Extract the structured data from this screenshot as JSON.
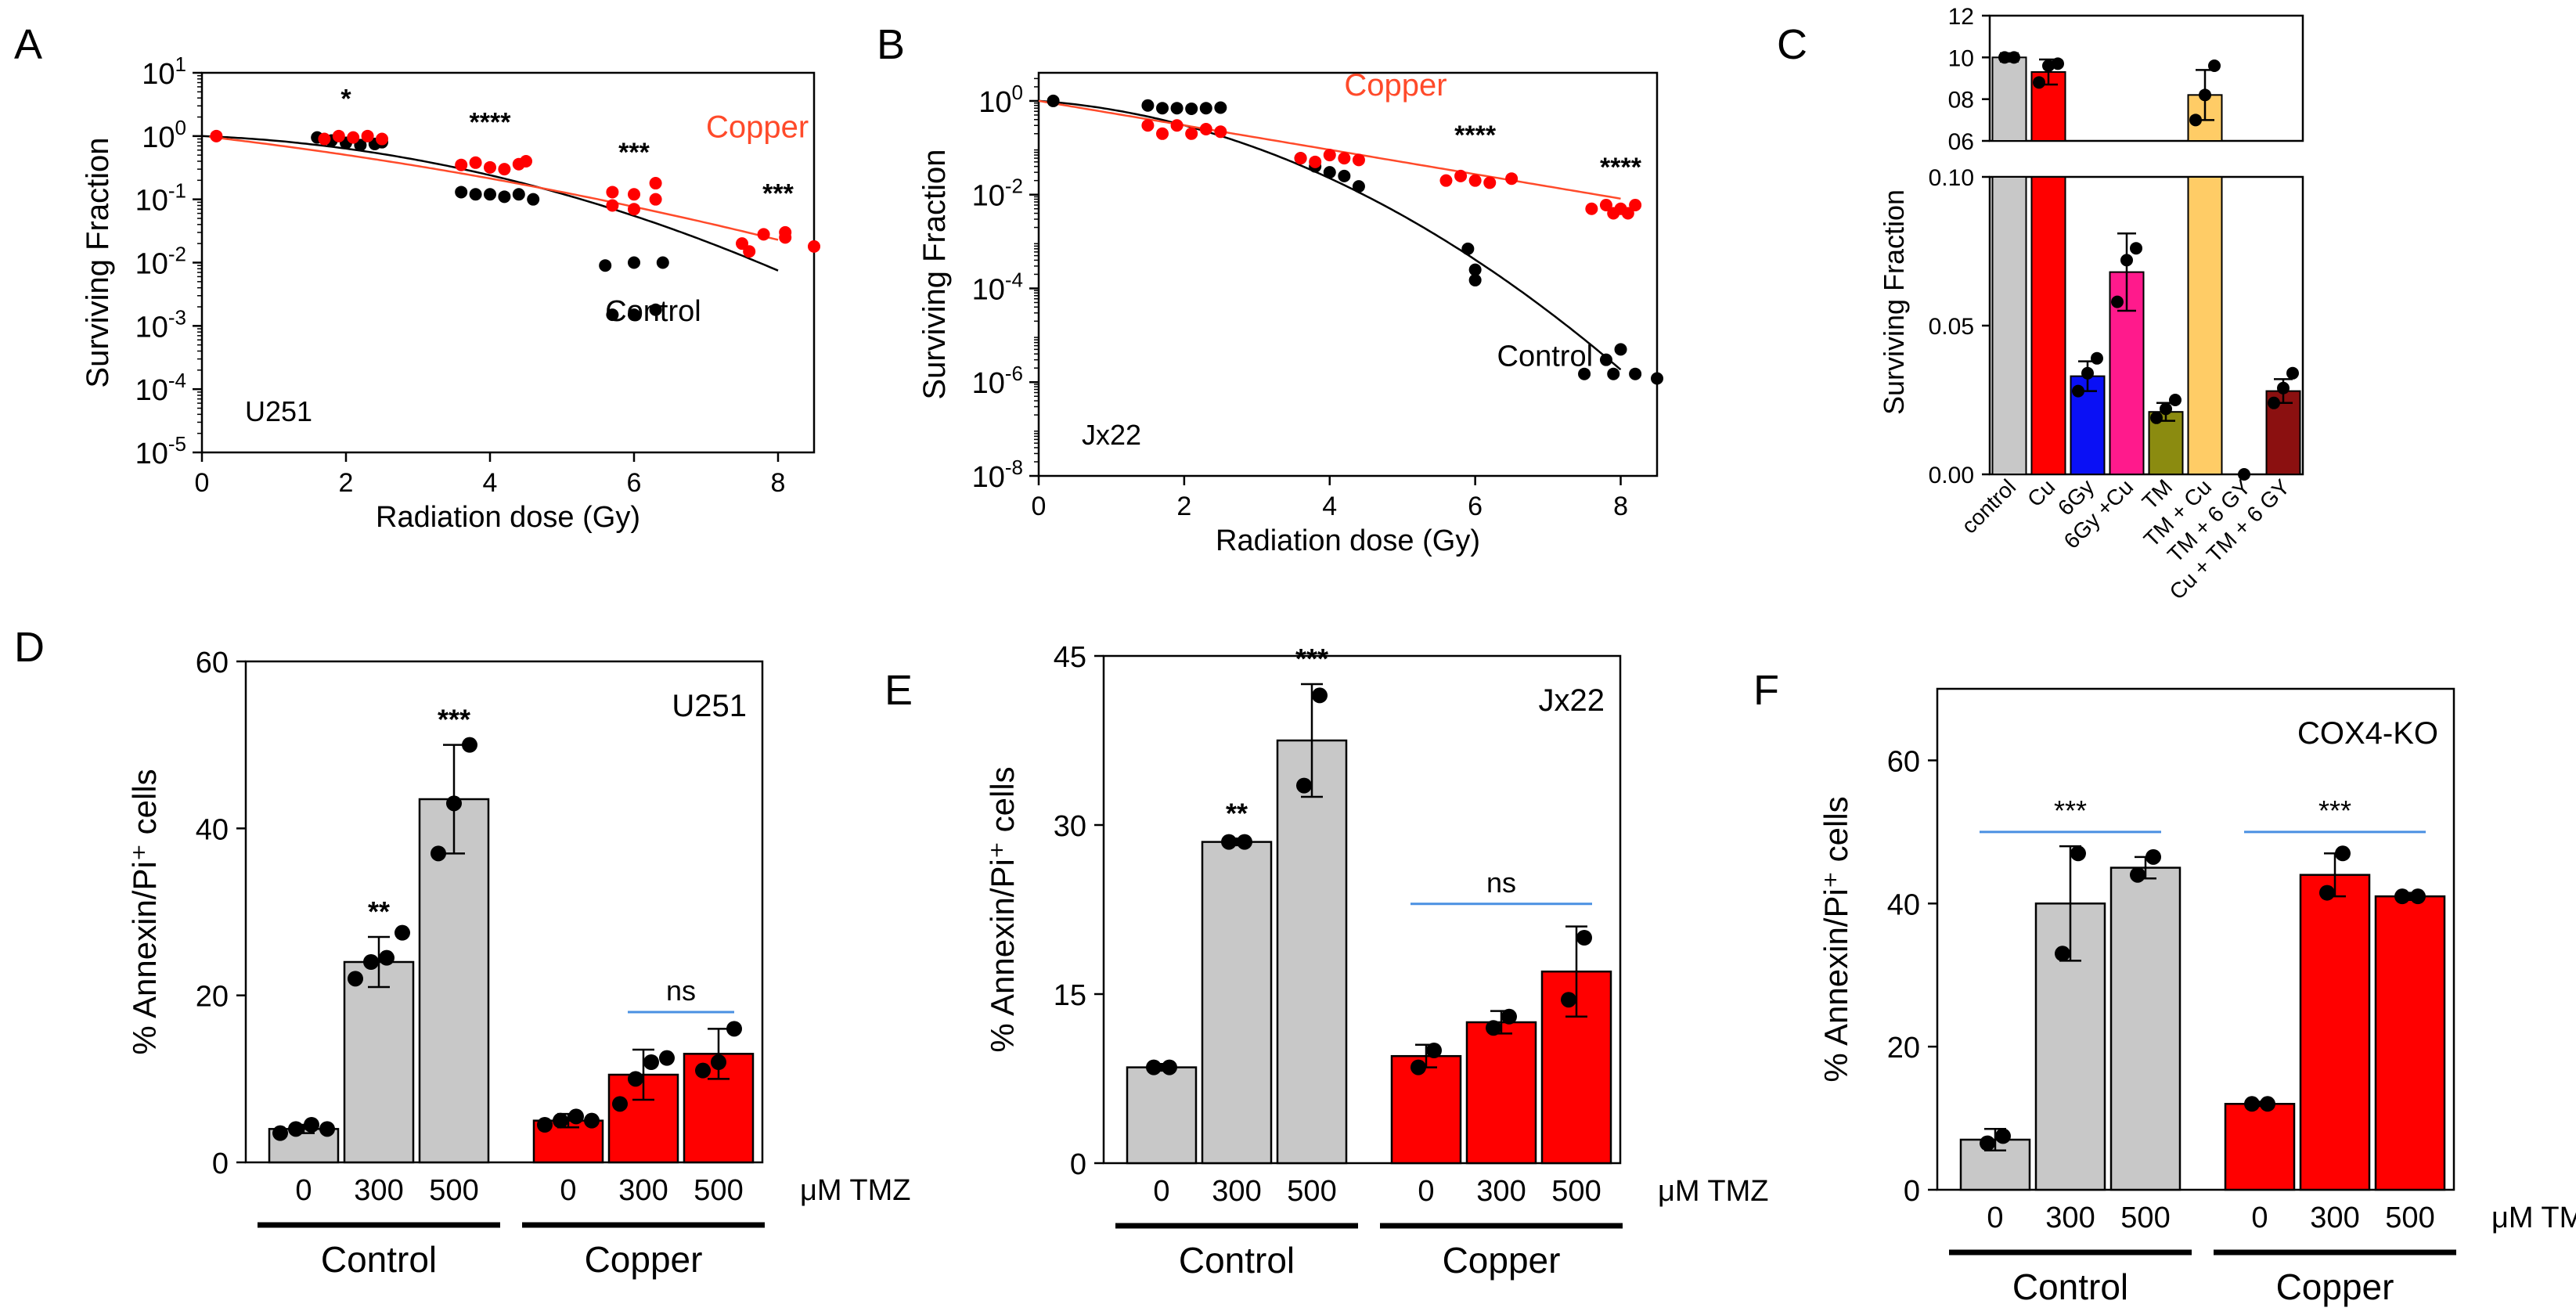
{
  "colors": {
    "black": "#000000",
    "control_grey": "#c8c8c8",
    "copper_red": "#ff0000",
    "copper_line": "#ff4a2a",
    "bracket_blue": "#4a90e2",
    "bar_blue": "#0a10f5",
    "bar_pink": "#ff1a8c",
    "bar_olive": "#8b8b10",
    "bar_orange": "#ffcc66",
    "bar_darkred": "#8b1010"
  },
  "chart_data": [
    {
      "id": "A",
      "panel_label": "A",
      "type": "scatter",
      "yscale": "log",
      "ylabel": "Surviving Fraction",
      "xlabel": "Radiation dose (Gy)",
      "xlim": [
        0,
        8.5
      ],
      "ylim_exp": [
        -5,
        1
      ],
      "x_ticks": [
        "0",
        "2",
        "4",
        "6",
        "8"
      ],
      "x_tick_values": [
        0,
        2,
        4,
        6,
        8
      ],
      "y_tick_exps": [
        1,
        0,
        -1,
        -2,
        -3,
        -4,
        -5
      ],
      "y_tick_labels": [
        {
          "base": "10",
          "exp": "1"
        },
        {
          "base": "10",
          "exp": "0"
        },
        {
          "base": "10",
          "exp": "-1"
        },
        {
          "base": "10",
          "exp": "-2"
        },
        {
          "base": "10",
          "exp": "-3"
        },
        {
          "base": "10",
          "exp": "-4"
        },
        {
          "base": "10",
          "exp": "-5"
        }
      ],
      "cell_line": "U251",
      "labels": {
        "copper": {
          "text": "Copper",
          "x": 7.0,
          "y": 0.95
        },
        "control": {
          "text": "Control",
          "x": 5.6,
          "y": 0.0012
        }
      },
      "significance": [
        {
          "text": "*",
          "x": 2.0,
          "y": 2.8
        },
        {
          "text": "****",
          "x": 4.0,
          "y": 1.2
        },
        {
          "text": "***",
          "x": 6.0,
          "y": 0.4
        },
        {
          "text": "***",
          "x": 8.0,
          "y": 0.09
        }
      ],
      "series": [
        {
          "name": "Control",
          "color_key": "black",
          "fit": {
            "model": "lq",
            "alpha": 0.1,
            "beta": 0.064,
            "xmax": 8.0
          },
          "points": [
            [
              1.6,
              0.95
            ],
            [
              1.8,
              0.85
            ],
            [
              2.0,
              0.78
            ],
            [
              2.2,
              0.72
            ],
            [
              2.4,
              0.75
            ],
            [
              2.5,
              0.8
            ],
            [
              3.6,
              0.13
            ],
            [
              3.8,
              0.12
            ],
            [
              4.0,
              0.12
            ],
            [
              4.2,
              0.11
            ],
            [
              4.4,
              0.12
            ],
            [
              4.6,
              0.1
            ],
            [
              5.6,
              0.009
            ],
            [
              6.0,
              0.01
            ],
            [
              6.4,
              0.01
            ],
            [
              5.7,
              0.0015
            ],
            [
              6.0,
              0.0015
            ],
            [
              6.3,
              0.0018
            ]
          ]
        },
        {
          "name": "Copper",
          "color_key": "copper_red",
          "fit": {
            "model": "lq",
            "alpha": 0.3,
            "beta": 0.0215,
            "xmin": 0.1,
            "xmax": 8.0
          },
          "points": [
            [
              0.2,
              1.0
            ],
            [
              1.7,
              0.9
            ],
            [
              1.9,
              1.0
            ],
            [
              2.1,
              0.95
            ],
            [
              2.3,
              1.0
            ],
            [
              2.5,
              0.9
            ],
            [
              3.6,
              0.35
            ],
            [
              3.8,
              0.38
            ],
            [
              4.0,
              0.32
            ],
            [
              4.2,
              0.3
            ],
            [
              4.4,
              0.36
            ],
            [
              4.5,
              0.4
            ],
            [
              5.7,
              0.13
            ],
            [
              6.0,
              0.12
            ],
            [
              6.3,
              0.18
            ],
            [
              5.7,
              0.08
            ],
            [
              6.0,
              0.07
            ],
            [
              6.3,
              0.1
            ],
            [
              7.5,
              0.02
            ],
            [
              7.8,
              0.028
            ],
            [
              8.1,
              0.025
            ],
            [
              7.6,
              0.015
            ],
            [
              8.1,
              0.03
            ],
            [
              8.5,
              0.018
            ]
          ]
        }
      ]
    },
    {
      "id": "B",
      "panel_label": "B",
      "type": "scatter",
      "yscale": "log",
      "ylabel": "Surviving Fraction",
      "xlabel": "Radiation dose (Gy)",
      "xlim": [
        0,
        8.5
      ],
      "ylim_exp": [
        -8,
        0.6
      ],
      "x_ticks": [
        "0",
        "2",
        "4",
        "6",
        "8"
      ],
      "x_tick_values": [
        0,
        2,
        4,
        6,
        8
      ],
      "y_tick_exps": [
        0,
        -2,
        -4,
        -6,
        -8
      ],
      "y_tick_labels": [
        {
          "base": "10",
          "exp": "0"
        },
        {
          "base": "10",
          "exp": "-2"
        },
        {
          "base": "10",
          "exp": "-4"
        },
        {
          "base": "10",
          "exp": "-6"
        },
        {
          "base": "10",
          "exp": "-8"
        }
      ],
      "cell_line": "Jx22",
      "labels": {
        "copper": {
          "text": "Copper",
          "x": 4.2,
          "y": 1.3
        },
        "control": {
          "text": "Control",
          "x": 6.3,
          "y": 2.2e-06
        }
      },
      "significance": [
        {
          "text": "****",
          "x": 6.0,
          "y": 0.12
        },
        {
          "text": "****",
          "x": 8.0,
          "y": 0.025
        }
      ],
      "series": [
        {
          "name": "Control",
          "color_key": "black",
          "fit": {
            "model": "lq",
            "alpha": 0.25,
            "beta": 0.175,
            "xmax": 8.0
          },
          "points": [
            [
              0.2,
              1.0
            ],
            [
              1.5,
              0.8
            ],
            [
              1.7,
              0.7
            ],
            [
              1.9,
              0.7
            ],
            [
              2.1,
              0.68
            ],
            [
              2.3,
              0.7
            ],
            [
              2.5,
              0.72
            ],
            [
              3.6,
              0.06
            ],
            [
              3.8,
              0.04
            ],
            [
              4.0,
              0.03
            ],
            [
              4.2,
              0.025
            ],
            [
              4.4,
              0.015
            ],
            [
              5.9,
              0.0007
            ],
            [
              6.0,
              0.00025
            ],
            [
              6.0,
              0.00015
            ],
            [
              7.5,
              1.5e-06
            ],
            [
              7.8,
              3e-06
            ],
            [
              8.0,
              5e-06
            ],
            [
              7.9,
              1.5e-06
            ],
            [
              8.2,
              1.5e-06
            ],
            [
              8.5,
              1.2e-06
            ]
          ]
        },
        {
          "name": "Copper",
          "color_key": "copper_red",
          "fit": {
            "model": "lq",
            "alpha": 0.6,
            "beta": 0.0,
            "xmax": 8.0
          },
          "points": [
            [
              1.5,
              0.3
            ],
            [
              1.7,
              0.2
            ],
            [
              1.9,
              0.3
            ],
            [
              2.1,
              0.2
            ],
            [
              2.3,
              0.25
            ],
            [
              2.5,
              0.22
            ],
            [
              3.6,
              0.06
            ],
            [
              3.8,
              0.05
            ],
            [
              4.0,
              0.07
            ],
            [
              4.2,
              0.06
            ],
            [
              4.4,
              0.055
            ],
            [
              5.6,
              0.02
            ],
            [
              5.8,
              0.025
            ],
            [
              6.0,
              0.02
            ],
            [
              6.2,
              0.018
            ],
            [
              6.5,
              0.022
            ],
            [
              7.6,
              0.005
            ],
            [
              7.8,
              0.006
            ],
            [
              8.0,
              0.005
            ],
            [
              8.2,
              0.006
            ],
            [
              7.9,
              0.004
            ],
            [
              8.1,
              0.004
            ]
          ]
        }
      ]
    },
    {
      "id": "C",
      "panel_label": "C",
      "type": "bar",
      "broken_axis": true,
      "ylabel": "Surviving Fraction",
      "categories": [
        "control",
        "Cu",
        "6Gy",
        "6Gy +Cu",
        "TM",
        "TM + Cu",
        "TM + 6 GY",
        "Cu + TM + 6 GY"
      ],
      "color_keys": [
        "control_grey",
        "copper_red",
        "bar_blue",
        "bar_pink",
        "bar_olive",
        "bar_orange",
        "bar_orange",
        "bar_darkred"
      ],
      "values": [
        1.0,
        0.93,
        0.033,
        0.068,
        0.021,
        0.82,
        0.0,
        0.028
      ],
      "errors": [
        0.02,
        0.06,
        0.005,
        0.013,
        0.003,
        0.12,
        0.0,
        0.004
      ],
      "replicates": [
        [
          1.0,
          1.0
        ],
        [
          0.88,
          0.96,
          0.97
        ],
        [
          0.028,
          0.034,
          0.039
        ],
        [
          0.058,
          0.072,
          0.076
        ],
        [
          0.019,
          0.022,
          0.025
        ],
        [
          0.7,
          0.82,
          0.96
        ],
        [
          0.0
        ],
        [
          0.024,
          0.029,
          0.034
        ]
      ],
      "upper_ylim": [
        0.6,
        1.2
      ],
      "upper_ticks": [
        "12",
        "10",
        "08",
        "06"
      ],
      "upper_tick_values": [
        1.2,
        1.0,
        0.8,
        0.6
      ],
      "lower_ylim": [
        0,
        0.1
      ],
      "lower_ticks": [
        "0.10",
        "0.05",
        "0.00"
      ],
      "lower_tick_values": [
        0.1,
        0.05,
        0.0
      ]
    },
    {
      "id": "D",
      "panel_label": "D",
      "type": "bar",
      "ylabel": "% Annexin/Pi⁺ cells",
      "ylim": [
        0,
        60
      ],
      "y_ticks": [
        "60",
        "40",
        "20",
        "0"
      ],
      "y_tick_values": [
        60,
        40,
        20,
        0
      ],
      "cell_line": "U251",
      "tmz_unit": "μM TMZ",
      "tick_labels": [
        "0",
        "300",
        "500",
        "0",
        "300",
        "500"
      ],
      "groups": [
        "Control",
        "Copper"
      ],
      "values": [
        4.0,
        24.0,
        43.5,
        5.0,
        10.5,
        13.0
      ],
      "errors": [
        0.5,
        3.0,
        6.5,
        0.8,
        3.0,
        3.0
      ],
      "group_index": [
        0,
        0,
        0,
        1,
        1,
        1
      ],
      "replicates": [
        [
          3.5,
          4.0,
          4.5,
          4.0
        ],
        [
          22.0,
          24.0,
          24.5,
          27.5
        ],
        [
          37.0,
          43.0,
          50.0
        ],
        [
          4.5,
          5.0,
          5.5,
          5.0
        ],
        [
          7.0,
          10.0,
          12.0,
          12.5
        ],
        [
          11.0,
          12.0,
          16.0
        ]
      ],
      "stars": [
        {
          "bar": 1,
          "text": "**"
        },
        {
          "bar": 2,
          "text": "***"
        }
      ],
      "brackets": [
        {
          "from": 4,
          "to": 5,
          "y": 18,
          "text": "ns"
        }
      ]
    },
    {
      "id": "E",
      "panel_label": "E",
      "type": "bar",
      "ylabel": "% Annexin/Pi⁺ cells",
      "ylim": [
        0,
        45
      ],
      "y_ticks": [
        "45",
        "30",
        "15",
        "0"
      ],
      "y_tick_values": [
        45,
        30,
        15,
        0
      ],
      "cell_line": "Jx22",
      "tmz_unit": "μM TMZ",
      "tick_labels": [
        "0",
        "300",
        "500",
        "0",
        "300",
        "500"
      ],
      "groups": [
        "Control",
        "Copper"
      ],
      "values": [
        8.5,
        28.5,
        37.5,
        9.5,
        12.5,
        17.0
      ],
      "errors": [
        0.3,
        0.3,
        5.0,
        1.0,
        1.0,
        4.0
      ],
      "group_index": [
        0,
        0,
        0,
        1,
        1,
        1
      ],
      "replicates": [
        [
          8.5,
          8.5
        ],
        [
          28.5,
          28.5
        ],
        [
          33.5,
          41.5
        ],
        [
          8.5,
          10.0
        ],
        [
          12.0,
          13.0
        ],
        [
          14.5,
          20.0
        ]
      ],
      "stars": [
        {
          "bar": 1,
          "text": "**"
        },
        {
          "bar": 2,
          "text": "***"
        }
      ],
      "brackets": [
        {
          "from": 3,
          "to": 5,
          "y": 23.0,
          "text": "ns"
        }
      ]
    },
    {
      "id": "F",
      "panel_label": "F",
      "type": "bar",
      "ylabel": "% Annexin/Pi⁺ cells",
      "ylim": [
        0,
        70
      ],
      "y_ticks": [
        "60",
        "40",
        "20",
        "0"
      ],
      "y_tick_values": [
        60,
        40,
        20,
        0
      ],
      "cell_line": "COX4-KO",
      "tmz_unit": "μM TMZ",
      "tick_labels": [
        "0",
        "300",
        "500",
        "0",
        "300",
        "500"
      ],
      "groups": [
        "Control",
        "Copper"
      ],
      "values": [
        7.0,
        40.0,
        45.0,
        12.0,
        44.0,
        41.0
      ],
      "errors": [
        1.5,
        8.0,
        1.5,
        0.3,
        3.0,
        0.5
      ],
      "group_index": [
        0,
        0,
        0,
        1,
        1,
        1
      ],
      "replicates": [
        [
          6.5,
          7.5
        ],
        [
          33.0,
          47.0
        ],
        [
          44.0,
          46.5
        ],
        [
          12.0,
          12.0
        ],
        [
          41.5,
          47.0
        ],
        [
          41.0,
          41.0
        ]
      ],
      "stars": [],
      "brackets": [
        {
          "from": 0,
          "to": 2,
          "y": 50,
          "text": "***"
        },
        {
          "from": 3,
          "to": 5,
          "y": 50,
          "text": "***"
        }
      ]
    }
  ]
}
